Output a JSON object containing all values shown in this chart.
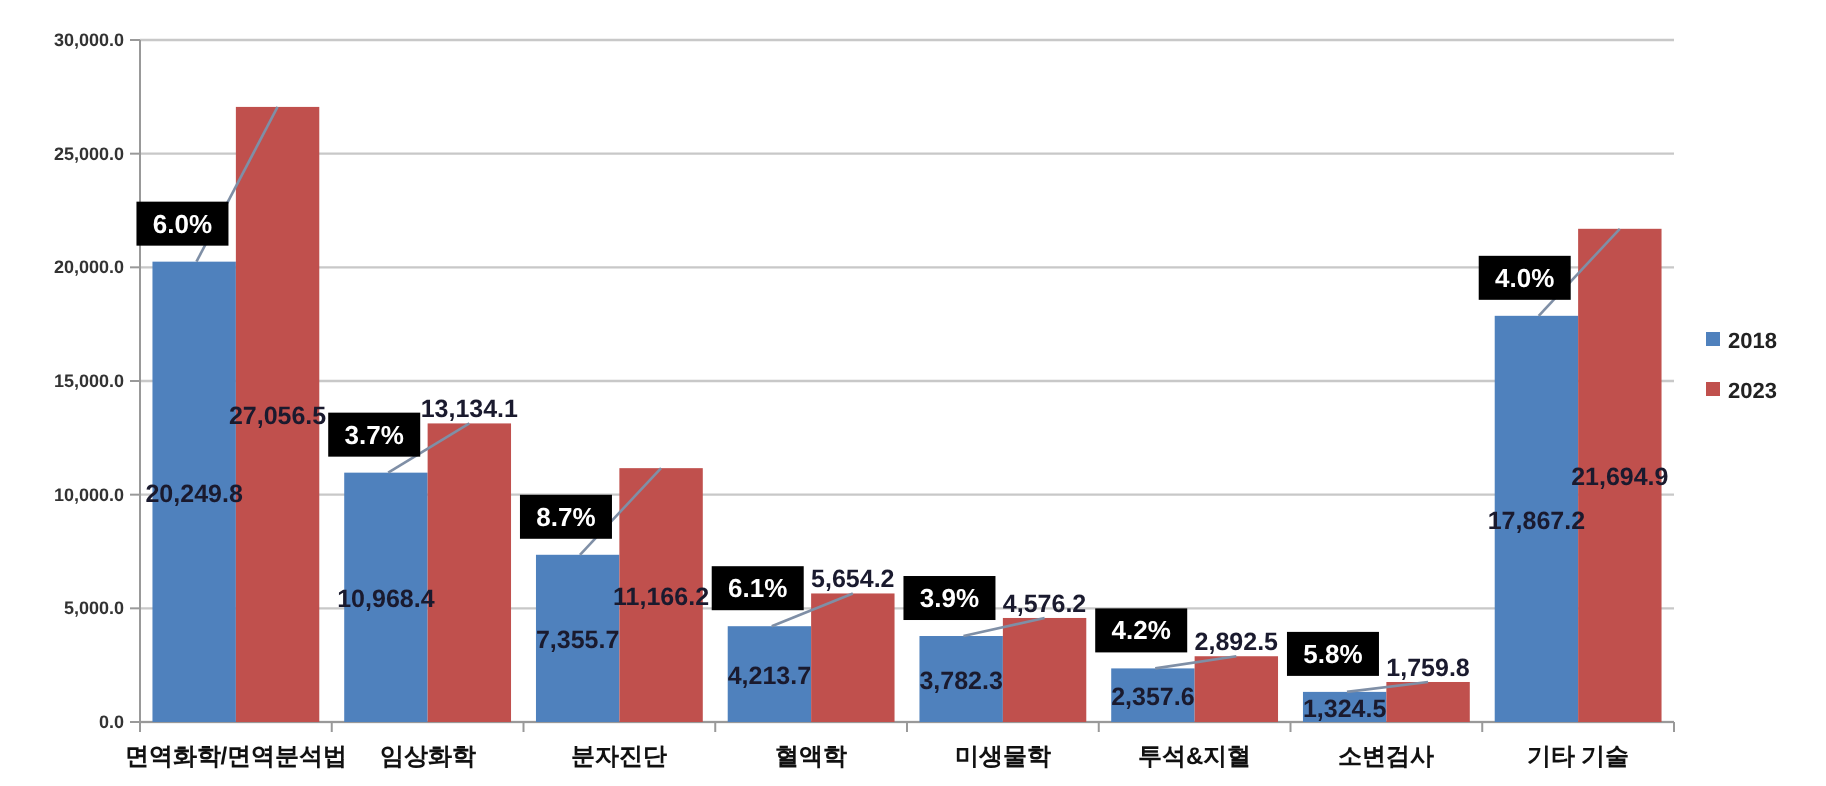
{
  "chart_data": {
    "type": "bar",
    "categories": [
      "면역화학/면역분석법",
      "임상화학",
      "분자진단",
      "혈액학",
      "미생물학",
      "투석&지혈",
      "소변검사",
      "기타 기술"
    ],
    "series": [
      {
        "name": "2018",
        "color": "#4f81bd",
        "values": [
          20249.8,
          10968.4,
          7355.7,
          4213.7,
          3782.3,
          2357.6,
          1324.5,
          17867.2
        ],
        "value_labels": [
          "20,249.8",
          "10,968.4",
          "7,355.7",
          "4,213.7",
          "3,782.3",
          "2,357.6",
          "1,324.5",
          "17,867.2"
        ]
      },
      {
        "name": "2023",
        "color": "#c0504d",
        "values": [
          27056.5,
          13134.1,
          11166.2,
          5654.2,
          4576.2,
          2892.5,
          1759.8,
          21694.9
        ],
        "value_labels": [
          "27,056.5",
          "13,134.1",
          "11,166.2",
          "5,654.2",
          "4,576.2",
          "2,892.5",
          "1,759.8",
          "21,694.9"
        ]
      }
    ],
    "ylim": [
      0,
      30000
    ],
    "yticks": [
      {
        "value": 0,
        "label": "0.0"
      },
      {
        "value": 5000,
        "label": "5,000.0"
      },
      {
        "value": 10000,
        "label": "10,000.0"
      },
      {
        "value": 15000,
        "label": "15,000.0"
      },
      {
        "value": 20000,
        "label": "20,000.0"
      },
      {
        "value": 25000,
        "label": "25,000.0"
      },
      {
        "value": 30000,
        "label": "30,000.0"
      }
    ],
    "grid": "y",
    "legend": "right",
    "annotations": [
      {
        "text": "6.0%",
        "x": "면역화학/면역분석법",
        "y": 20249.8
      },
      {
        "text": "3.7%",
        "x": "임상화학",
        "y": 10968.4
      },
      {
        "text": "8.7%",
        "x": "분자진단",
        "y": 7355.7
      },
      {
        "text": "6.1%",
        "x": "혈액학",
        "y": 4213.7
      },
      {
        "text": "3.9%",
        "x": "미생물학",
        "y": 3782.3
      },
      {
        "text": "4.2%",
        "x": "투석&지혈",
        "y": 2357.6
      },
      {
        "text": "5.8%",
        "x": "소변검사",
        "y": 1324.5
      },
      {
        "text": "4.0%",
        "x": "기타 기술",
        "y": 17867.2
      }
    ]
  }
}
